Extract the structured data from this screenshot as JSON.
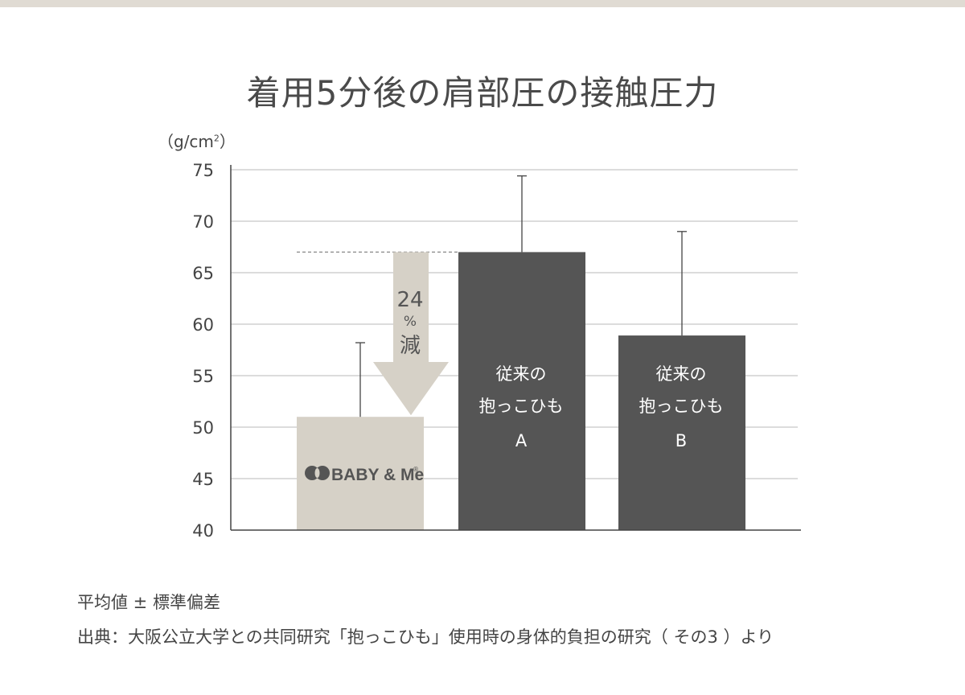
{
  "title": "着用5分後の肩部圧の接触圧力",
  "unit": {
    "base": "（g/cm",
    "sup": "2",
    "close": "）"
  },
  "chart_data": {
    "type": "bar",
    "title": "着用5分後の肩部圧の接触圧力",
    "ylabel": "（g/cm2）",
    "ylim": [
      40,
      75
    ],
    "yticks": [
      "75",
      "70",
      "65",
      "60",
      "55",
      "50",
      "45",
      "40"
    ],
    "grid": true,
    "bars": [
      {
        "name": "BABY & Me",
        "value": 51,
        "error_top": 58.2,
        "color": "#d6d1c7"
      },
      {
        "name": "従来の抱っこひもA",
        "value": 67,
        "error_top": 74.4,
        "color": "#555555"
      },
      {
        "name": "従来の抱っこひもB",
        "value": 58.9,
        "error_top": 69,
        "color": "#555555"
      }
    ],
    "annotation": {
      "value": "24",
      "percent": "%",
      "word": "減"
    }
  },
  "bar_labels": {
    "b": {
      "line1": "従来の",
      "line2": "抱っこひも",
      "line3": "A"
    },
    "c": {
      "line1": "従来の",
      "line2": "抱っこひも",
      "line3": "B"
    }
  },
  "logo": {
    "text": "BABY & Me",
    "mark": "®"
  },
  "notes": {
    "stat": "平均値 ± 標準偏差",
    "source": "出典：大阪公立大学との共同研究「抱っこひも」使用時の身体的負担の研究（ その3 ）より"
  },
  "colors": {
    "grid": "#c8c8c8",
    "axis": "#444444",
    "bar_light": "#d6d1c7",
    "bar_dark": "#555555",
    "arrow": "#d6d1c7",
    "text": "#444444"
  }
}
